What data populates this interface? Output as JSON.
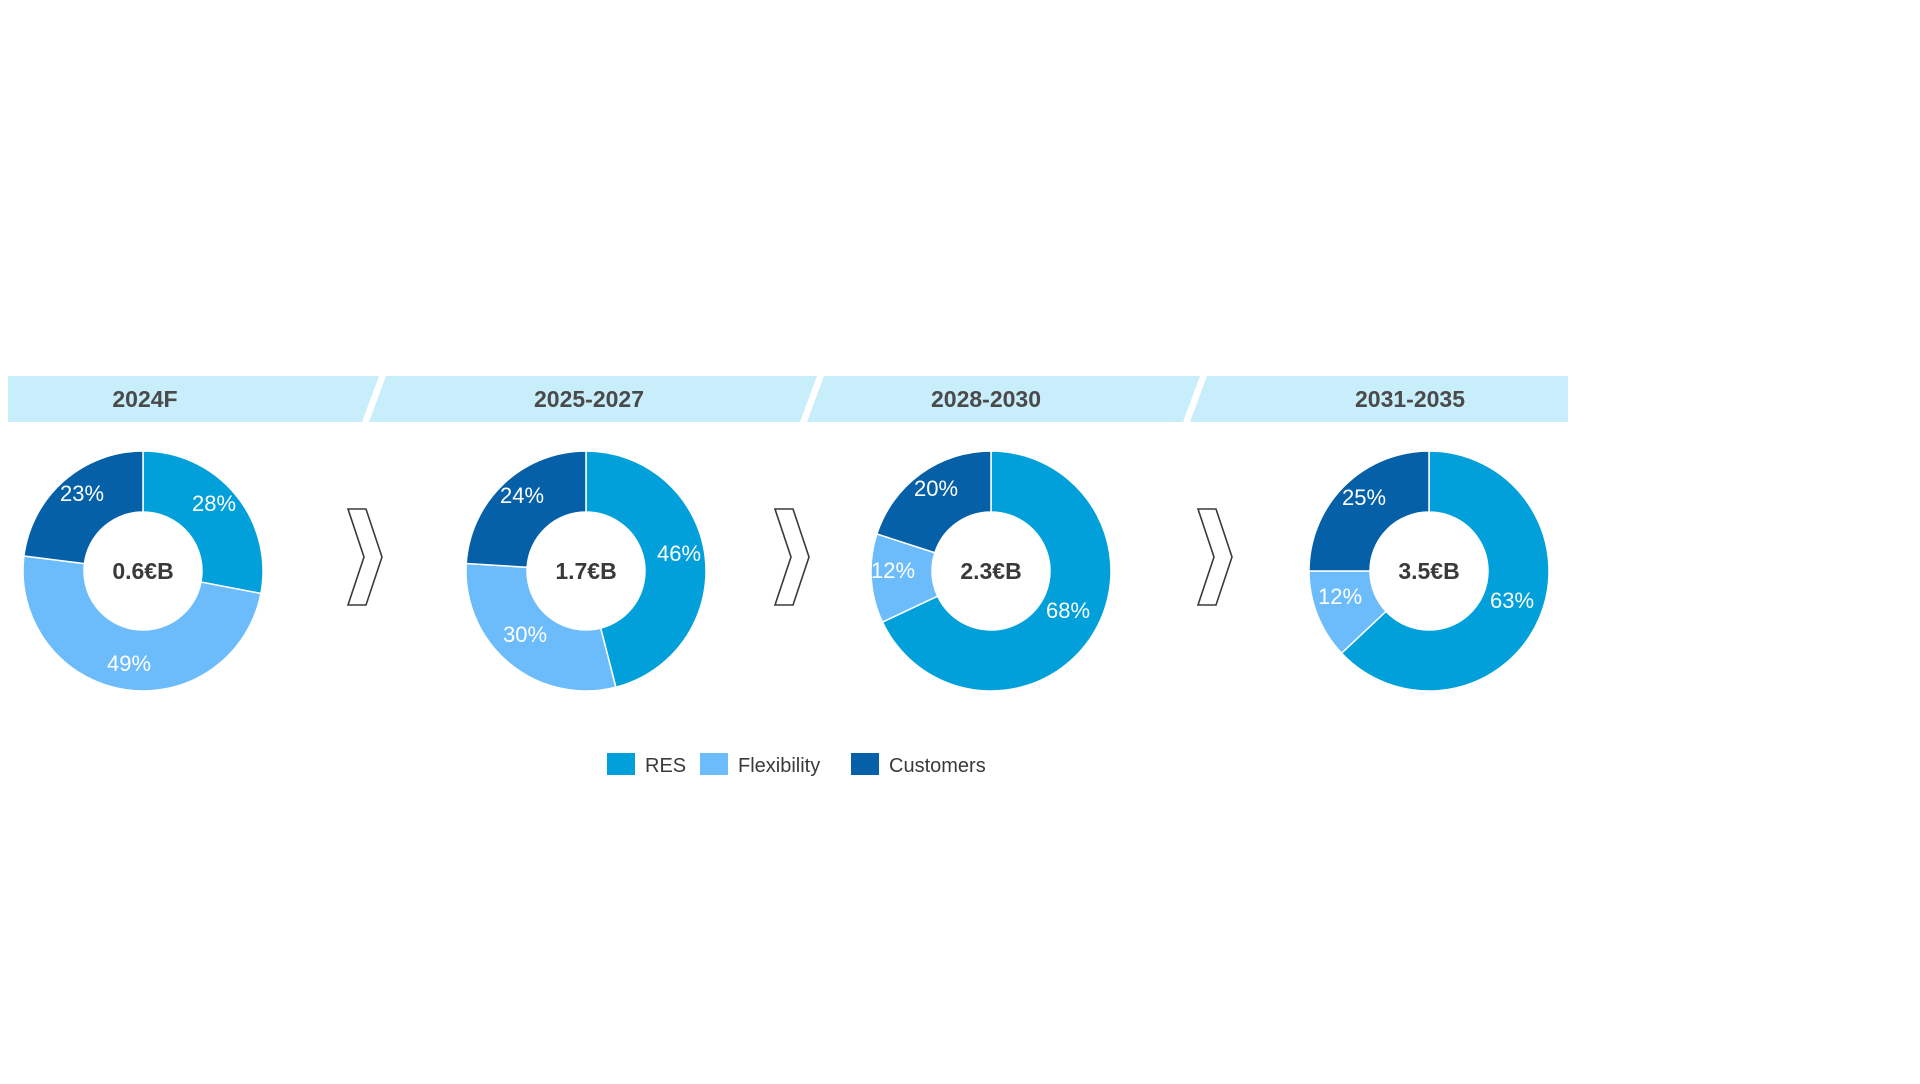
{
  "colors": {
    "banner": "#c8eefb",
    "RES": "#02a0da",
    "Flexibility": "#6cbcfb",
    "Customers": "#0560a8",
    "arrow_stroke": "#3a3a3a"
  },
  "chart_data": [
    {
      "type": "pie",
      "phase": "2024F",
      "total_label": "0.6€B",
      "categories": [
        "RES",
        "Flexibility",
        "Customers"
      ],
      "values": [
        28,
        49,
        23
      ],
      "value_labels": [
        "28%",
        "49%",
        "23%"
      ]
    },
    {
      "type": "pie",
      "phase": "2025-2027",
      "total_label": "1.7€B",
      "categories": [
        "RES",
        "Flexibility",
        "Customers"
      ],
      "values": [
        46,
        30,
        24
      ],
      "value_labels": [
        "46%",
        "30%",
        "24%"
      ]
    },
    {
      "type": "pie",
      "phase": "2028-2030",
      "total_label": "2.3€B",
      "categories": [
        "RES",
        "Flexibility",
        "Customers"
      ],
      "values": [
        68,
        12,
        20
      ],
      "value_labels": [
        "68%",
        "12%",
        "20%"
      ]
    },
    {
      "type": "pie",
      "phase": "2031-2035",
      "total_label": "3.5€B",
      "categories": [
        "RES",
        "Flexibility",
        "Customers"
      ],
      "values": [
        63,
        12,
        25
      ],
      "value_labels": [
        "63%",
        "12%",
        "25%"
      ]
    }
  ],
  "legend": [
    {
      "name": "RES",
      "color": "#02a0da"
    },
    {
      "name": "Flexibility",
      "color": "#6cbcfb"
    },
    {
      "name": "Customers",
      "color": "#0560a8"
    }
  ]
}
